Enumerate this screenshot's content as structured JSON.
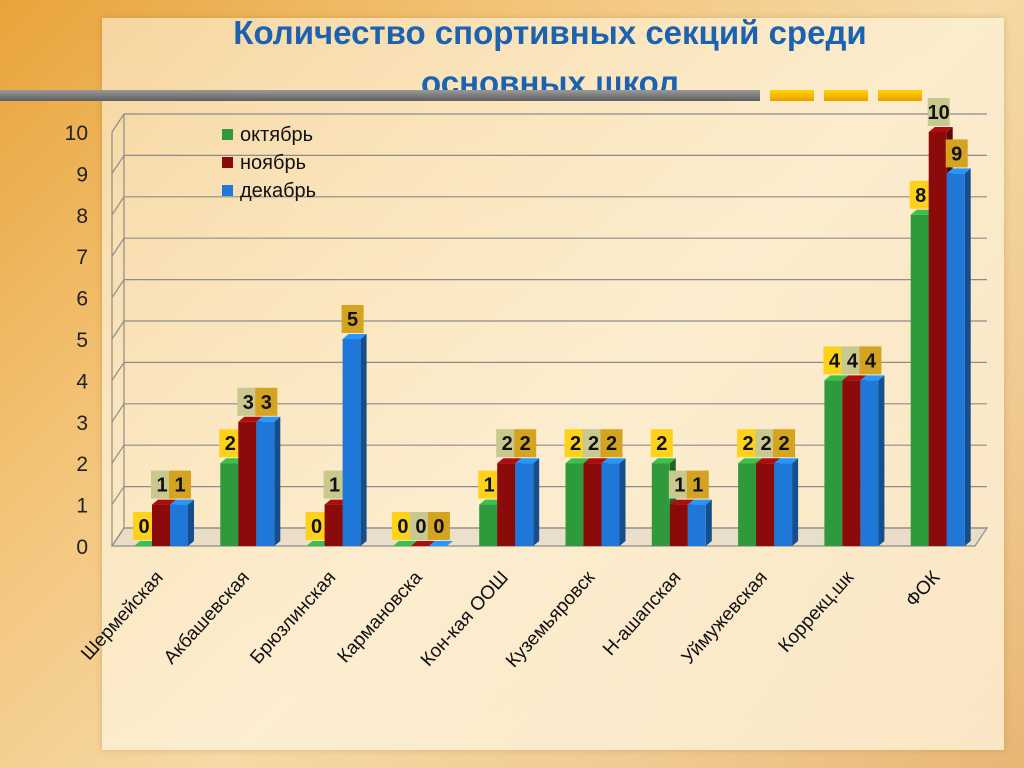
{
  "slide": {
    "title_line1": "Количество спортивных секций среди",
    "title_line2": "основных школ"
  },
  "colors": {
    "october": "#2f9a3b",
    "november": "#8b0a0a",
    "december": "#1f78d8",
    "label_bg_yellow": "#ffd21a",
    "label_bg_olive": "#c9c98f",
    "label_bg_gold": "#d4a31f",
    "title": "#1b62b0"
  },
  "chart_data": {
    "type": "bar",
    "title": "Количество спортивных секций среди основных школ",
    "xlabel": "",
    "ylabel": "",
    "ylim": [
      0,
      10
    ],
    "yticks": [
      0,
      1,
      2,
      3,
      4,
      5,
      6,
      7,
      8,
      9,
      10
    ],
    "categories": [
      "Шермейская",
      "Акбашевская",
      "Брюзлинская",
      "Кармановска",
      "Кон-кая ООШ",
      "Куземьяровск",
      "Н-ашапская",
      "Уймужевская",
      "Коррекц.шк",
      "ФОК"
    ],
    "series": [
      {
        "name": "октябрь",
        "values": [
          0,
          2,
          0,
          0,
          1,
          2,
          2,
          2,
          4,
          8
        ]
      },
      {
        "name": "ноябрь",
        "values": [
          1,
          3,
          1,
          0,
          2,
          2,
          1,
          2,
          4,
          10
        ]
      },
      {
        "name": "декабрь",
        "values": [
          1,
          3,
          5,
          0,
          2,
          2,
          1,
          2,
          4,
          9
        ]
      }
    ],
    "grid": true,
    "legend_position": "top-left",
    "bar_style": "3d"
  }
}
